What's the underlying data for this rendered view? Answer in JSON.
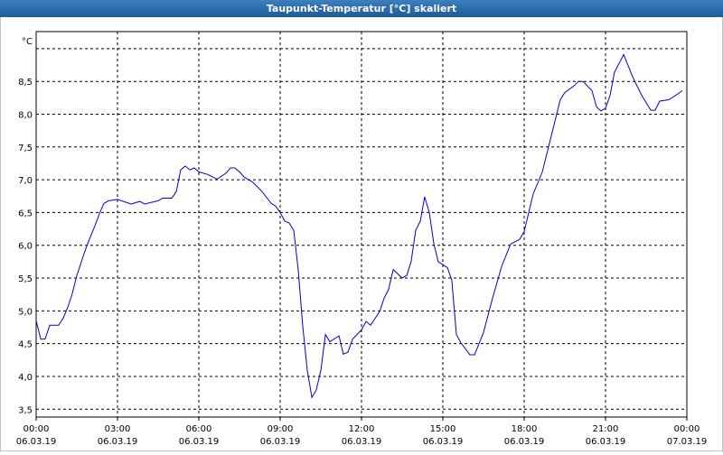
{
  "window": {
    "title": "Taupunkt-Temperatur [°C] skaliert"
  },
  "chart_data": {
    "type": "line",
    "y_unit": "°C",
    "color": "#0000cc",
    "grid": true,
    "xlim": [
      0,
      24
    ],
    "ylim": [
      3.38,
      9.26
    ],
    "xticks": [
      {
        "value": 0,
        "label": "00:00"
      },
      {
        "value": 3,
        "label": "03:00"
      },
      {
        "value": 6,
        "label": "06:00"
      },
      {
        "value": 9,
        "label": "09:00"
      },
      {
        "value": 12,
        "label": "12:00"
      },
      {
        "value": 15,
        "label": "15:00"
      },
      {
        "value": 18,
        "label": "18:00"
      },
      {
        "value": 21,
        "label": "21:00"
      },
      {
        "value": 24,
        "label": "00:00"
      }
    ],
    "xtick_dates": [
      "06.03.19",
      "06.03.19",
      "06.03.19",
      "06.03.19",
      "06.03.19",
      "06.03.19",
      "06.03.19",
      "06.03.19",
      "07.03.19"
    ],
    "yticks": [
      {
        "value": 3.5,
        "label": "3,5"
      },
      {
        "value": 4,
        "label": "4,0"
      },
      {
        "value": 4.5,
        "label": "4,5"
      },
      {
        "value": 5,
        "label": "5,0"
      },
      {
        "value": 5.5,
        "label": "5,5"
      },
      {
        "value": 6,
        "label": "6,0"
      },
      {
        "value": 6.5,
        "label": "6,5"
      },
      {
        "value": 7,
        "label": "7,0"
      },
      {
        "value": 7.5,
        "label": "7,5"
      },
      {
        "value": 8,
        "label": "8,0"
      },
      {
        "value": 8.5,
        "label": "8,5"
      }
    ],
    "ygrid": [
      3.5,
      4,
      4.5,
      5,
      5.5,
      6,
      6.5,
      7,
      7.5,
      8,
      8.5,
      9
    ],
    "x": [
      0,
      0.17,
      0.33,
      0.5,
      0.83,
      1.0,
      1.17,
      1.33,
      1.5,
      1.67,
      1.83,
      2.0,
      2.17,
      2.33,
      2.5,
      2.67,
      3.0,
      3.5,
      3.83,
      4.0,
      4.5,
      4.67,
      5.0,
      5.17,
      5.33,
      5.5,
      5.67,
      5.83,
      6.0,
      6.33,
      6.67,
      7.0,
      7.17,
      7.33,
      7.5,
      7.67,
      8.0,
      8.33,
      8.67,
      8.83,
      9.0,
      9.17,
      9.33,
      9.5,
      9.67,
      9.83,
      10.0,
      10.17,
      10.33,
      10.5,
      10.67,
      10.83,
      11.17,
      11.33,
      11.5,
      11.67,
      12.0,
      12.17,
      12.33,
      12.67,
      12.83,
      13.0,
      13.17,
      13.5,
      13.67,
      13.83,
      14.0,
      14.17,
      14.33,
      14.5,
      14.67,
      14.83,
      15.17,
      15.33,
      15.5,
      15.67,
      16.0,
      16.17,
      16.5,
      16.83,
      17.17,
      17.5,
      17.83,
      18.0,
      18.33,
      18.67,
      19.0,
      19.33,
      19.5,
      19.83,
      20.0,
      20.17,
      20.5,
      20.67,
      20.83,
      21.0,
      21.17,
      21.33,
      21.67,
      22.0,
      22.33,
      22.67,
      22.83,
      23.0,
      23.33,
      23.67,
      23.83
    ],
    "values": [
      4.85,
      4.57,
      4.57,
      4.78,
      4.78,
      4.89,
      5.06,
      5.26,
      5.54,
      5.75,
      5.95,
      6.13,
      6.3,
      6.48,
      6.64,
      6.68,
      6.7,
      6.63,
      6.67,
      6.63,
      6.68,
      6.72,
      6.72,
      6.82,
      7.15,
      7.21,
      7.15,
      7.18,
      7.12,
      7.08,
      7.01,
      7.1,
      7.18,
      7.18,
      7.12,
      7.04,
      6.96,
      6.82,
      6.64,
      6.6,
      6.5,
      6.37,
      6.34,
      6.23,
      5.61,
      4.78,
      4.09,
      3.68,
      3.79,
      4.09,
      4.64,
      4.53,
      4.62,
      4.34,
      4.37,
      4.57,
      4.71,
      4.84,
      4.78,
      4.99,
      5.19,
      5.33,
      5.63,
      5.5,
      5.54,
      5.75,
      6.23,
      6.37,
      6.74,
      6.5,
      6.02,
      5.75,
      5.66,
      5.47,
      4.64,
      4.51,
      4.33,
      4.33,
      4.67,
      5.19,
      5.68,
      6.02,
      6.09,
      6.21,
      6.78,
      7.12,
      7.67,
      8.22,
      8.33,
      8.43,
      8.5,
      8.5,
      8.36,
      8.11,
      8.05,
      8.09,
      8.29,
      8.64,
      8.91,
      8.57,
      8.29,
      8.06,
      8.06,
      8.2,
      8.22,
      8.31,
      8.36
    ]
  }
}
